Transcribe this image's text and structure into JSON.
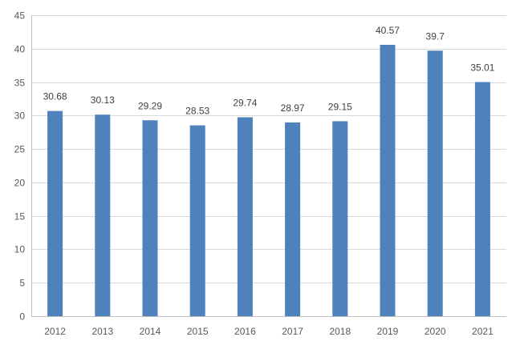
{
  "chart_data": {
    "type": "bar",
    "title": "",
    "xlabel": "",
    "ylabel": "",
    "categories": [
      "2012",
      "2013",
      "2014",
      "2015",
      "2016",
      "2017",
      "2018",
      "2019",
      "2020",
      "2021"
    ],
    "values": [
      30.68,
      30.13,
      29.29,
      28.53,
      29.74,
      28.97,
      29.15,
      40.57,
      39.7,
      35.01
    ],
    "value_labels": [
      "30.68",
      "30.13",
      "29.29",
      "28.53",
      "29.74",
      "28.97",
      "29.15",
      "40.57",
      "39.7",
      "35.01"
    ],
    "ylim": [
      0,
      45
    ],
    "yticks": [
      0,
      5,
      10,
      15,
      20,
      25,
      30,
      35,
      40,
      45
    ],
    "ytick_labels": [
      "0",
      "5",
      "10",
      "15",
      "20",
      "25",
      "30",
      "35",
      "40",
      "45"
    ],
    "grid": true,
    "legend": "none",
    "bar_color": "#4f81bd"
  }
}
